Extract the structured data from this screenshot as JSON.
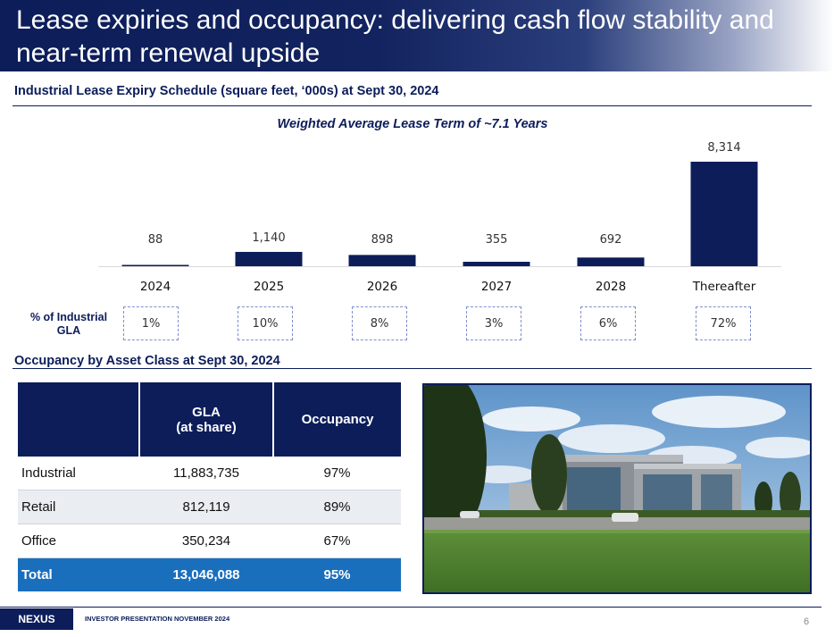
{
  "header": {
    "title": "Lease expiries and occupancy: delivering cash flow stability and near-term renewal upside"
  },
  "lease_section": {
    "title": "Industrial Lease Expiry Schedule (square feet, ‘000s) at Sept 30, 2024",
    "subtitle": "Weighted Average Lease Term of ~7.1 Years",
    "pct_label": "% of Industrial GLA",
    "pct_values": [
      "1%",
      "10%",
      "8%",
      "3%",
      "6%",
      "72%"
    ]
  },
  "chart_data": {
    "type": "bar",
    "title": "Weighted Average Lease Term of ~7.1 Years",
    "categories": [
      "2024",
      "2025",
      "2026",
      "2027",
      "2028",
      "Thereafter"
    ],
    "values": [
      88,
      1140,
      898,
      355,
      692,
      8314
    ],
    "value_labels": [
      "88",
      "1,140",
      "898",
      "355",
      "692",
      "8,314"
    ],
    "xlabel": "",
    "ylabel": "",
    "ylim": [
      0,
      8314
    ],
    "grid": false,
    "bar_color": "#0c1d5a"
  },
  "occupancy_section": {
    "title": "Occupancy by Asset Class at Sept 30, 2024",
    "headers": {
      "blank": "",
      "gla_line1": "GLA",
      "gla_line2": "(at share)",
      "occupancy": "Occupancy"
    },
    "rows": [
      {
        "name": "Industrial",
        "gla": "11,883,735",
        "occupancy": "97%"
      },
      {
        "name": "Retail",
        "gla": "812,119",
        "occupancy": "89%"
      },
      {
        "name": "Office",
        "gla": "350,234",
        "occupancy": "67%"
      }
    ],
    "total": {
      "name": "Total",
      "gla": "13,046,088",
      "occupancy": "95%"
    }
  },
  "footer": {
    "logo": "NEXUS",
    "text": "INVESTOR PRESENTATION NOVEMBER 2024",
    "page_number": "6"
  },
  "colors": {
    "navy": "#0c1d5a",
    "accent_blue": "#1a6fbd",
    "row_alt": "#eaedf2"
  }
}
